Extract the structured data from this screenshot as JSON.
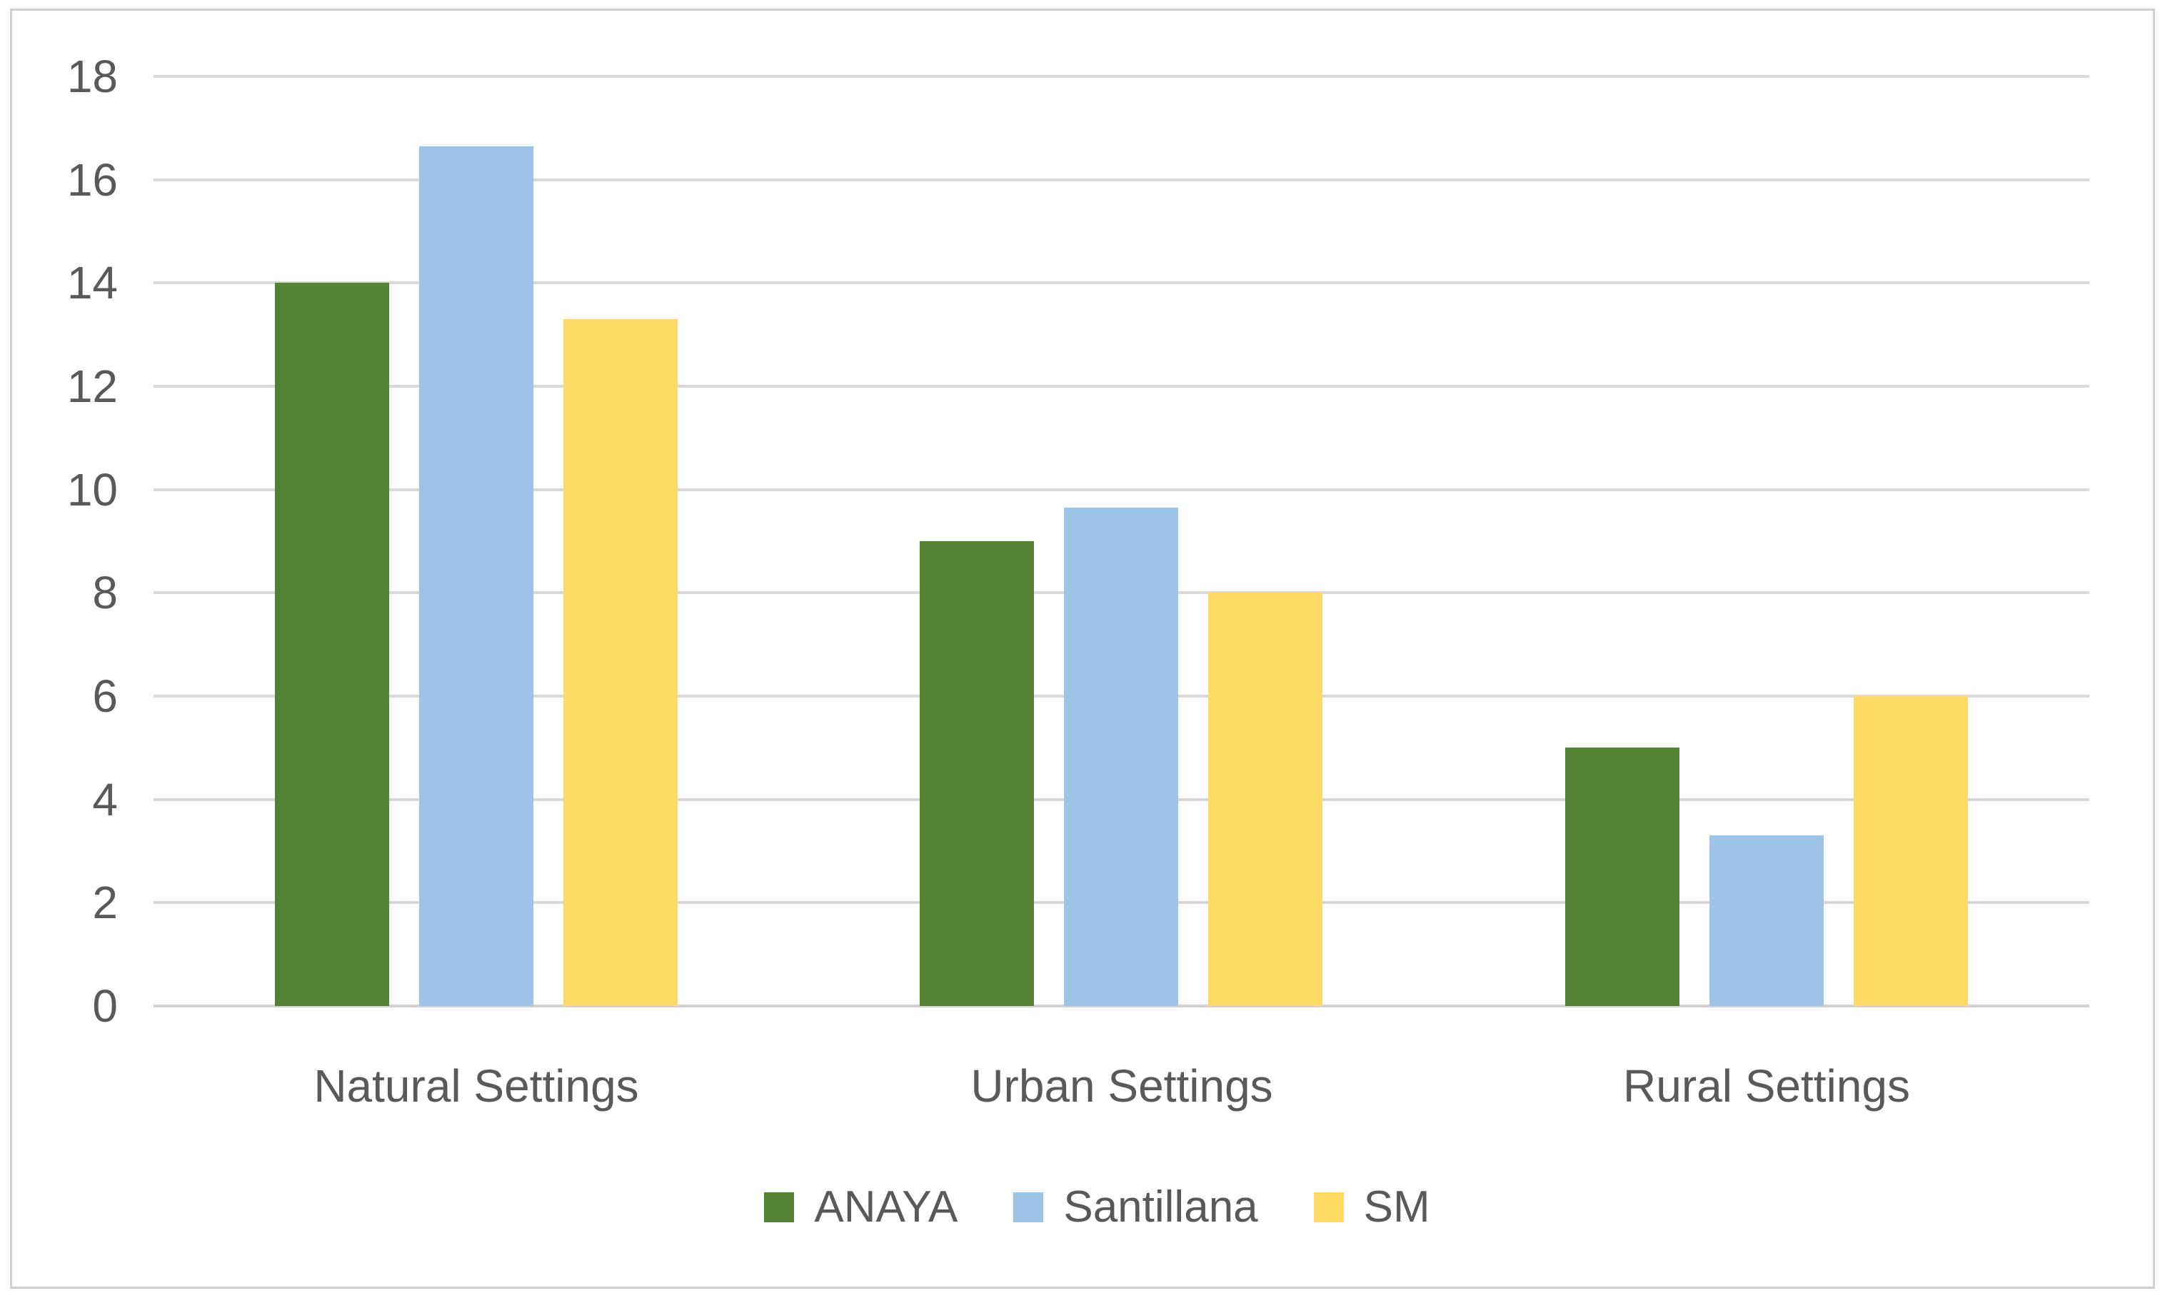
{
  "chart_data": {
    "type": "bar",
    "title": "",
    "xlabel": "",
    "ylabel": "",
    "categories": [
      "Natural Settings",
      "Urban Settings",
      "Rural Settings"
    ],
    "series": [
      {
        "name": "ANAYA",
        "color": "#538234",
        "values": [
          14,
          9,
          5
        ]
      },
      {
        "name": "Santillana",
        "color": "#9dc3e6",
        "values": [
          16.65,
          9.65,
          3.3
        ]
      },
      {
        "name": "SM",
        "color": "#ffd966",
        "values": [
          13.3,
          8,
          6
        ]
      }
    ],
    "ylim": [
      0,
      18
    ],
    "yticks": [
      0,
      2,
      4,
      6,
      8,
      10,
      12,
      14,
      16,
      18
    ],
    "grid": true,
    "legend_position": "bottom"
  },
  "colors": {
    "background": "#ffffff",
    "border": "#d0cece",
    "gridline": "#d9d9d9",
    "axis_line": "#d2d0d0",
    "text": "#595959"
  }
}
